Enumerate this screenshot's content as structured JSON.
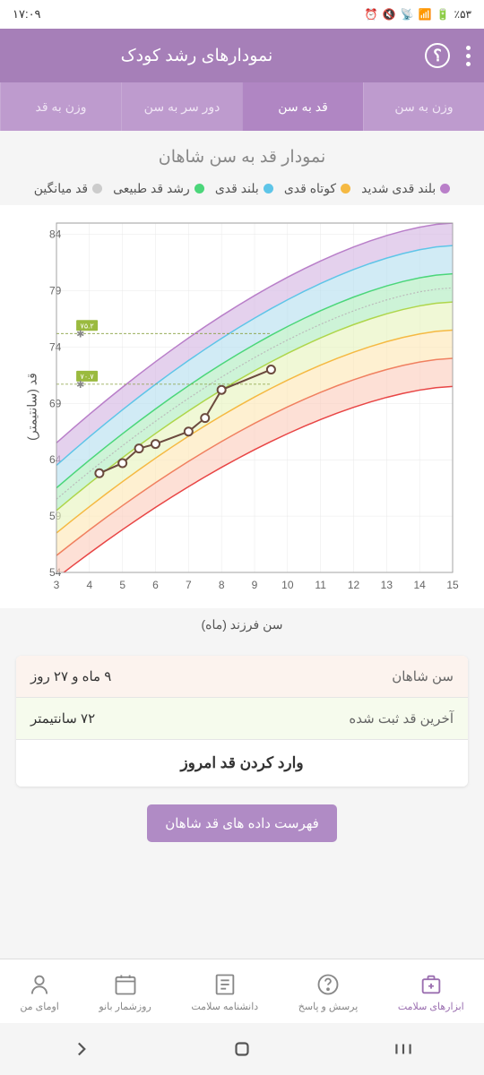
{
  "statusBar": {
    "time": "۱۷:۰۹",
    "battery": "٪۵۳",
    "icons": "📶 🔇 ⏰"
  },
  "header": {
    "title": "نمودارهای رشد کودک"
  },
  "tabs": {
    "items": [
      {
        "label": "وزن به سن",
        "active": false
      },
      {
        "label": "قد به سن",
        "active": true
      },
      {
        "label": "دور سر به سن",
        "active": false
      },
      {
        "label": "وزن به قد",
        "active": false
      }
    ]
  },
  "chartTitle": "نمودار قد به سن شاهان",
  "legend": [
    {
      "label": "بلند قدی شدید",
      "color": "#b97fc9"
    },
    {
      "label": "کوتاه قدی",
      "color": "#f5b942"
    },
    {
      "label": "بلند قدی",
      "color": "#5ec5e8"
    },
    {
      "label": "رشد قد طبیعی",
      "color": "#4bd67a"
    },
    {
      "label": "قد میانگین",
      "color": "#cccccc"
    }
  ],
  "chart": {
    "type": "line",
    "xlim": [
      3,
      15
    ],
    "ylim": [
      54,
      85
    ],
    "yticks": [
      54,
      59,
      64,
      69,
      74,
      79,
      84
    ],
    "xticks": [
      3,
      4,
      5,
      6,
      7,
      8,
      9,
      10,
      11,
      12,
      13,
      14,
      15
    ],
    "xlabel": "سن فرزند (ماه)",
    "ylabel": "قد (سانتیمتر)",
    "bands": [
      {
        "color": "#d6b8e3",
        "y_at3": 65.5,
        "y_at15": 85
      },
      {
        "color": "#b8e0f0",
        "y_at3": 63.5,
        "y_at15": 83
      },
      {
        "color": "#b2edc2",
        "y_at3": 61.5,
        "y_at15": 80.5
      },
      {
        "color": "#e8f5c0",
        "y_at3": 59.5,
        "y_at15": 78
      },
      {
        "color": "#fde8b8",
        "y_at3": 57.5,
        "y_at15": 75.5
      },
      {
        "color": "#fcd0c0",
        "y_at3": 55.5,
        "y_at15": 73
      },
      {
        "color": "#ffffff",
        "y_at3": 53.5,
        "y_at15": 70.5
      }
    ],
    "midline_color": "#bbbbbb",
    "user_line_color": "#6b4a3e",
    "marker_border": "#6b4a3e",
    "marker_fill": "#ffffff",
    "user_points": [
      {
        "x": 4.3,
        "y": 62.8
      },
      {
        "x": 5,
        "y": 63.7
      },
      {
        "x": 5.5,
        "y": 65
      },
      {
        "x": 6,
        "y": 65.4
      },
      {
        "x": 7,
        "y": 66.5
      },
      {
        "x": 7.5,
        "y": 67.7
      },
      {
        "x": 8,
        "y": 70.2
      },
      {
        "x": 9.5,
        "y": 72
      }
    ],
    "markers": [
      {
        "label": "۷۵.۲",
        "y": 75.2
      },
      {
        "label": "۷۰.۷",
        "y": 70.7
      }
    ],
    "background_color": "#ffffff",
    "grid_color": "#e8e8e8"
  },
  "info": {
    "row1": {
      "label": "سن شاهان",
      "value": "۹ ماه و ۲۷ روز"
    },
    "row2": {
      "label": "آخرین قد ثبت شده",
      "value": "۷۲ سانتیمتر"
    },
    "action": "وارد کردن قد امروز"
  },
  "listButton": "فهرست داده های قد شاهان",
  "bottomNav": [
    {
      "label": "ابزارهای سلامت",
      "icon": "health-tools",
      "active": true
    },
    {
      "label": "پرسش و پاسخ",
      "icon": "qa",
      "active": false
    },
    {
      "label": "دانشنامه سلامت",
      "icon": "encyclopedia",
      "active": false
    },
    {
      "label": "روزشمار بانو",
      "icon": "calendar",
      "active": false
    },
    {
      "label": "اومای من",
      "icon": "profile",
      "active": false
    }
  ]
}
